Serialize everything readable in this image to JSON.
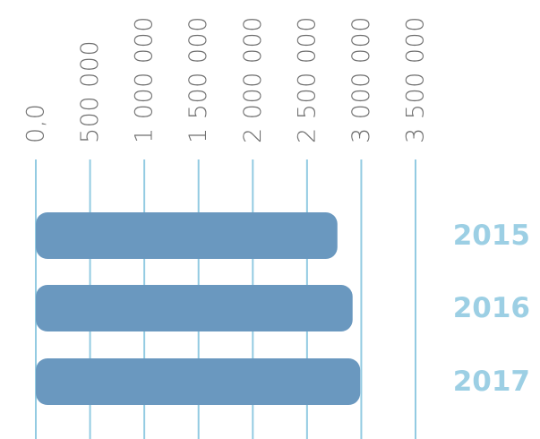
{
  "colors": {
    "bar": "#6a98bf",
    "grid": "#93cbe2",
    "tick_text": "#6f6f6f",
    "category_text": "#9ccfe4"
  },
  "chart_data": {
    "type": "bar",
    "orientation": "horizontal",
    "categories": [
      "2015",
      "2016",
      "2017"
    ],
    "values": [
      2780000,
      2920000,
      2990000
    ],
    "xlim": [
      0,
      3500000
    ],
    "x_ticks": [
      0,
      500000,
      1000000,
      1500000,
      2000000,
      2500000,
      3000000,
      3500000
    ],
    "x_tick_labels": [
      "0,0",
      "500 000",
      "1 000 000",
      "1 500 000",
      "2 000 000",
      "2 500 000",
      "3 000 000",
      "3 500 000"
    ],
    "axis_position": "top",
    "grid": true,
    "legend": "none"
  }
}
